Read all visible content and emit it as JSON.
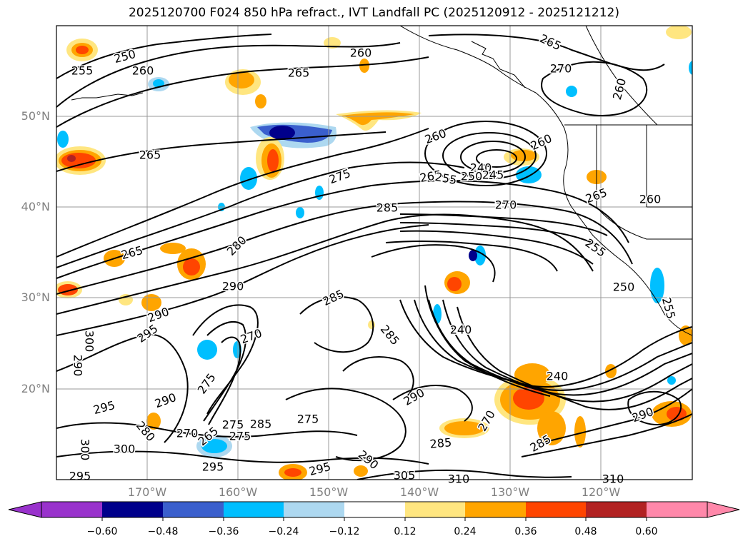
{
  "title": "2025120700 F024 850 hPa refract., IVT Landfall PC (2025120912 - 2025121212)",
  "axes": {
    "lat_labels": [
      "50°N",
      "40°N",
      "30°N",
      "20°N"
    ],
    "lon_labels": [
      "170°W",
      "160°W",
      "150°W",
      "140°W",
      "130°W",
      "120°W"
    ]
  },
  "contour_labels": [
    "250",
    "255",
    "260",
    "260",
    "265",
    "265",
    "260",
    "270",
    "265",
    "260",
    "260",
    "265",
    "240",
    "255",
    "250",
    "245",
    "275",
    "285",
    "270",
    "265",
    "260",
    "280",
    "265",
    "290",
    "285",
    "275",
    "255",
    "290",
    "295",
    "300",
    "290",
    "270",
    "285",
    "240",
    "250",
    "255",
    "295",
    "290",
    "275",
    "290",
    "280",
    "270",
    "265",
    "275",
    "285",
    "275",
    "285",
    "240",
    "270",
    "295",
    "300",
    "295",
    "290",
    "285",
    "300",
    "295",
    "305",
    "310",
    "310",
    "290"
  ],
  "colorbar": {
    "tick_labels": [
      "−0.60",
      "−0.48",
      "−0.36",
      "−0.24",
      "−0.12",
      "0.12",
      "0.24",
      "0.36",
      "0.48",
      "0.60"
    ],
    "colors": [
      "#9932cc",
      "#00008b",
      "#3a5fcd",
      "#00bfff",
      "#add8f0",
      "#ffffff",
      "#ffe680",
      "#ffa500",
      "#ff4500",
      "#b22222",
      "#ff88aa"
    ]
  }
}
